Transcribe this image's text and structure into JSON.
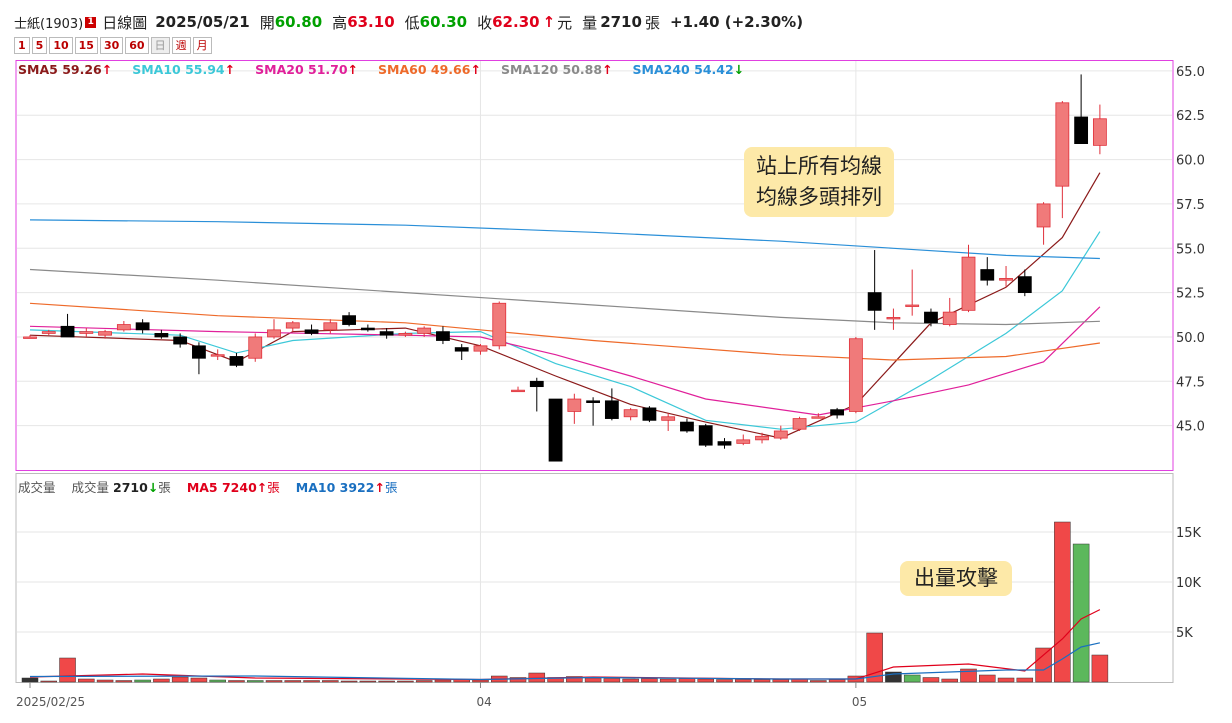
{
  "header": {
    "name": "士紙(1903)",
    "badge": "1",
    "period_label": "日線圖",
    "date": "2025/05/21",
    "open_label": "開",
    "open": "60.80",
    "high_label": "高",
    "high": "63.10",
    "low_label": "低",
    "low": "60.30",
    "close_label": "收",
    "close": "62.30",
    "close_arrow": "↑",
    "unit": "元",
    "volume_label": "量",
    "volume": "2710",
    "volume_unit": "張",
    "change": "+1.40 (+2.30%)"
  },
  "periods": [
    "1",
    "5",
    "10",
    "15",
    "30",
    "60",
    "日",
    "週",
    "月"
  ],
  "ma_legend": [
    {
      "label": "SMA5",
      "value": "59.26",
      "arrow": "↑",
      "color": "#8b1a1a",
      "arrow_color": "#e0001b"
    },
    {
      "label": "SMA10",
      "value": "55.94",
      "arrow": "↑",
      "color": "#3cc8d8",
      "arrow_color": "#e0001b"
    },
    {
      "label": "SMA20",
      "value": "51.70",
      "arrow": "↑",
      "color": "#e0209a",
      "arrow_color": "#e0001b"
    },
    {
      "label": "SMA60",
      "value": "49.66",
      "arrow": "↑",
      "color": "#ee6a2a",
      "arrow_color": "#e0001b"
    },
    {
      "label": "SMA120",
      "value": "50.88",
      "arrow": "↑",
      "color": "#8a8a8a",
      "arrow_color": "#e0001b"
    },
    {
      "label": "SMA240",
      "value": "54.42",
      "arrow": "↓",
      "color": "#2a8fd8",
      "arrow_color": "#00a000"
    }
  ],
  "volume_legend": {
    "title": "成交量",
    "vol_label": "成交量",
    "vol_value": "2710",
    "vol_arrow": "↓",
    "vol_unit": "張",
    "ma5_label": "MA5",
    "ma5_value": "7240",
    "ma5_arrow": "↑",
    "ma5_unit": "張",
    "ma10_label": "MA10",
    "ma10_value": "3922",
    "ma10_arrow": "↑",
    "ma10_unit": "張"
  },
  "annotations": {
    "price_note": [
      "站上所有均線",
      "均線多頭排列"
    ],
    "volume_note": "出量攻擊"
  },
  "colors": {
    "up": "#f07a7a",
    "down": "#000000",
    "vol_up": "#f04848",
    "vol_down": "#5cb85c",
    "frame": "#e040e0"
  },
  "chart_data": {
    "type": "candlestick",
    "start_date": "2025/02/25",
    "x_tick_labels": [
      {
        "index": 0,
        "label": "2025/02/25"
      },
      {
        "index": 24,
        "label": "04"
      },
      {
        "index": 44,
        "label": "05"
      }
    ],
    "price_axis": {
      "min": 42.5,
      "max": 65.5,
      "ticks": [
        45.0,
        47.5,
        50.0,
        52.5,
        55.0,
        57.5,
        60.0,
        62.5,
        65.0
      ]
    },
    "volume_axis": {
      "min": 0,
      "max": 20000,
      "ticks": [
        {
          "v": 5000,
          "label": "5K"
        },
        {
          "v": 10000,
          "label": "10K"
        },
        {
          "v": 15000,
          "label": "15K"
        }
      ]
    },
    "candles": [
      [
        50.0,
        50.1,
        50.0,
        50.0
      ],
      [
        50.2,
        50.4,
        50.1,
        50.3
      ],
      [
        50.6,
        51.3,
        50.0,
        50.0
      ],
      [
        50.2,
        50.5,
        50.0,
        50.3
      ],
      [
        50.1,
        50.4,
        49.9,
        50.3
      ],
      [
        50.4,
        50.9,
        50.3,
        50.7
      ],
      [
        50.8,
        51.0,
        50.2,
        50.4
      ],
      [
        50.2,
        50.4,
        49.9,
        50.0
      ],
      [
        50.0,
        50.2,
        49.4,
        49.6
      ],
      [
        49.5,
        49.7,
        47.9,
        48.8
      ],
      [
        49.0,
        49.3,
        48.7,
        49.0
      ],
      [
        48.9,
        49.1,
        48.3,
        48.4
      ],
      [
        48.8,
        50.2,
        48.6,
        50.0
      ],
      [
        50.0,
        51.0,
        49.9,
        50.4
      ],
      [
        50.5,
        50.9,
        50.3,
        50.8
      ],
      [
        50.4,
        50.7,
        50.1,
        50.2
      ],
      [
        50.4,
        51.0,
        50.2,
        50.8
      ],
      [
        51.2,
        51.4,
        50.6,
        50.7
      ],
      [
        50.5,
        50.7,
        50.3,
        50.4
      ],
      [
        50.3,
        50.5,
        49.9,
        50.1
      ],
      [
        50.1,
        50.3,
        50.0,
        50.2
      ],
      [
        50.2,
        50.6,
        50.0,
        50.5
      ],
      [
        50.3,
        50.6,
        49.6,
        49.8
      ],
      [
        49.4,
        49.6,
        48.7,
        49.2
      ],
      [
        49.2,
        49.6,
        49.0,
        49.5
      ],
      [
        49.5,
        52.0,
        49.3,
        51.9
      ],
      [
        47.0,
        47.2,
        46.9,
        47.0
      ],
      [
        47.5,
        47.7,
        45.8,
        47.2
      ],
      [
        46.5,
        46.5,
        43.0,
        43.0
      ],
      [
        45.8,
        46.8,
        45.1,
        46.5
      ],
      [
        46.4,
        46.6,
        45.0,
        46.3
      ],
      [
        46.4,
        47.1,
        45.3,
        45.4
      ],
      [
        45.5,
        46.0,
        45.3,
        45.9
      ],
      [
        46.0,
        46.1,
        45.2,
        45.3
      ],
      [
        45.3,
        45.7,
        44.7,
        45.5
      ],
      [
        45.2,
        45.4,
        44.6,
        44.7
      ],
      [
        45.0,
        45.1,
        43.8,
        43.9
      ],
      [
        44.1,
        44.3,
        43.7,
        43.9
      ],
      [
        44.0,
        44.5,
        43.9,
        44.2
      ],
      [
        44.2,
        44.6,
        44.0,
        44.4
      ],
      [
        44.3,
        45.0,
        44.2,
        44.7
      ],
      [
        44.8,
        45.5,
        44.7,
        45.4
      ],
      [
        45.5,
        45.7,
        45.4,
        45.5
      ],
      [
        45.9,
        46.0,
        45.4,
        45.6
      ],
      [
        45.8,
        50.0,
        45.7,
        49.9
      ],
      [
        52.5,
        54.9,
        50.4,
        51.5
      ],
      [
        51.1,
        51.6,
        50.4,
        51.1
      ],
      [
        51.8,
        53.8,
        51.2,
        51.8
      ],
      [
        51.4,
        51.6,
        50.6,
        50.8
      ],
      [
        50.7,
        52.2,
        50.6,
        51.4
      ],
      [
        51.5,
        55.2,
        51.4,
        54.5
      ],
      [
        53.8,
        54.5,
        52.9,
        53.2
      ],
      [
        53.2,
        54.0,
        52.8,
        53.3
      ],
      [
        53.4,
        53.8,
        52.3,
        52.5
      ],
      [
        56.2,
        57.6,
        55.2,
        57.5
      ],
      [
        58.5,
        63.3,
        56.7,
        63.2
      ],
      [
        62.4,
        64.8,
        60.9,
        60.9
      ],
      [
        60.8,
        63.1,
        60.3,
        62.3
      ]
    ],
    "volumes": [
      [
        400,
        "down"
      ],
      [
        100,
        "up"
      ],
      [
        2400,
        "up"
      ],
      [
        300,
        "up"
      ],
      [
        200,
        "up"
      ],
      [
        150,
        "up"
      ],
      [
        200,
        "down"
      ],
      [
        300,
        "up"
      ],
      [
        500,
        "up"
      ],
      [
        400,
        "up"
      ],
      [
        200,
        "down"
      ],
      [
        150,
        "up"
      ],
      [
        150,
        "down"
      ],
      [
        150,
        "up"
      ],
      [
        150,
        "up"
      ],
      [
        150,
        "up"
      ],
      [
        150,
        "up"
      ],
      [
        100,
        "up"
      ],
      [
        100,
        "up"
      ],
      [
        100,
        "up"
      ],
      [
        100,
        "up"
      ],
      [
        150,
        "up"
      ],
      [
        200,
        "up"
      ],
      [
        250,
        "up"
      ],
      [
        200,
        "up"
      ],
      [
        600,
        "up"
      ],
      [
        450,
        "up"
      ],
      [
        900,
        "up"
      ],
      [
        450,
        "up"
      ],
      [
        550,
        "up"
      ],
      [
        400,
        "up"
      ],
      [
        350,
        "up"
      ],
      [
        300,
        "up"
      ],
      [
        350,
        "up"
      ],
      [
        300,
        "up"
      ],
      [
        350,
        "up"
      ],
      [
        300,
        "up"
      ],
      [
        250,
        "up"
      ],
      [
        250,
        "up"
      ],
      [
        250,
        "up"
      ],
      [
        250,
        "up"
      ],
      [
        300,
        "up"
      ],
      [
        150,
        "up"
      ],
      [
        250,
        "up"
      ],
      [
        600,
        "up"
      ],
      [
        4900,
        "up"
      ],
      [
        1000,
        "down"
      ],
      [
        700,
        "down"
      ],
      [
        450,
        "up"
      ],
      [
        300,
        "up"
      ],
      [
        1300,
        "up"
      ],
      [
        700,
        "up"
      ],
      [
        400,
        "up"
      ],
      [
        400,
        "up"
      ],
      [
        3400,
        "up"
      ],
      [
        16000,
        "up"
      ],
      [
        13800,
        "down"
      ],
      [
        2700,
        "up"
      ]
    ],
    "sma_series": {
      "SMA5": [
        [
          0,
          50.1
        ],
        [
          8,
          49.8
        ],
        [
          11,
          48.6
        ],
        [
          14,
          50.3
        ],
        [
          20,
          50.5
        ],
        [
          24,
          49.5
        ],
        [
          28,
          47.8
        ],
        [
          32,
          46.2
        ],
        [
          36,
          45.2
        ],
        [
          40,
          44.3
        ],
        [
          44,
          46.2
        ],
        [
          48,
          50.8
        ],
        [
          52,
          52.8
        ],
        [
          55,
          55.6
        ],
        [
          57,
          59.26
        ]
      ],
      "SMA10": [
        [
          0,
          50.4
        ],
        [
          8,
          50.1
        ],
        [
          11,
          49.1
        ],
        [
          14,
          49.8
        ],
        [
          20,
          50.2
        ],
        [
          24,
          50.3
        ],
        [
          28,
          48.5
        ],
        [
          32,
          47.2
        ],
        [
          36,
          45.3
        ],
        [
          40,
          44.8
        ],
        [
          44,
          45.2
        ],
        [
          48,
          47.6
        ],
        [
          52,
          50.2
        ],
        [
          55,
          52.6
        ],
        [
          57,
          55.94
        ]
      ],
      "SMA20": [
        [
          0,
          50.6
        ],
        [
          10,
          50.3
        ],
        [
          20,
          50.1
        ],
        [
          24,
          50.0
        ],
        [
          28,
          49.0
        ],
        [
          32,
          47.8
        ],
        [
          36,
          46.5
        ],
        [
          42,
          45.6
        ],
        [
          46,
          46.4
        ],
        [
          50,
          47.3
        ],
        [
          54,
          48.6
        ],
        [
          57,
          51.7
        ]
      ],
      "SMA60": [
        [
          0,
          51.9
        ],
        [
          10,
          51.2
        ],
        [
          20,
          50.8
        ],
        [
          30,
          49.8
        ],
        [
          40,
          49.0
        ],
        [
          46,
          48.7
        ],
        [
          52,
          48.9
        ],
        [
          57,
          49.66
        ]
      ],
      "SMA120": [
        [
          0,
          53.8
        ],
        [
          10,
          53.2
        ],
        [
          20,
          52.5
        ],
        [
          30,
          51.8
        ],
        [
          40,
          51.1
        ],
        [
          46,
          50.8
        ],
        [
          52,
          50.7
        ],
        [
          57,
          50.88
        ]
      ],
      "SMA240": [
        [
          0,
          56.6
        ],
        [
          10,
          56.5
        ],
        [
          20,
          56.3
        ],
        [
          30,
          55.9
        ],
        [
          40,
          55.4
        ],
        [
          46,
          55.0
        ],
        [
          52,
          54.6
        ],
        [
          57,
          54.42
        ]
      ]
    },
    "volume_ma": {
      "MA5": [
        [
          0,
          500
        ],
        [
          6,
          800
        ],
        [
          12,
          400
        ],
        [
          24,
          250
        ],
        [
          30,
          500
        ],
        [
          40,
          300
        ],
        [
          44,
          300
        ],
        [
          46,
          1500
        ],
        [
          50,
          1800
        ],
        [
          53,
          1100
        ],
        [
          55,
          4300
        ],
        [
          56,
          6300
        ],
        [
          57,
          7240
        ]
      ],
      "MA10": [
        [
          0,
          550
        ],
        [
          12,
          600
        ],
        [
          24,
          250
        ],
        [
          30,
          450
        ],
        [
          40,
          300
        ],
        [
          44,
          300
        ],
        [
          46,
          800
        ],
        [
          52,
          1200
        ],
        [
          54,
          1200
        ],
        [
          55,
          2300
        ],
        [
          56,
          3500
        ],
        [
          57,
          3922
        ]
      ]
    }
  }
}
